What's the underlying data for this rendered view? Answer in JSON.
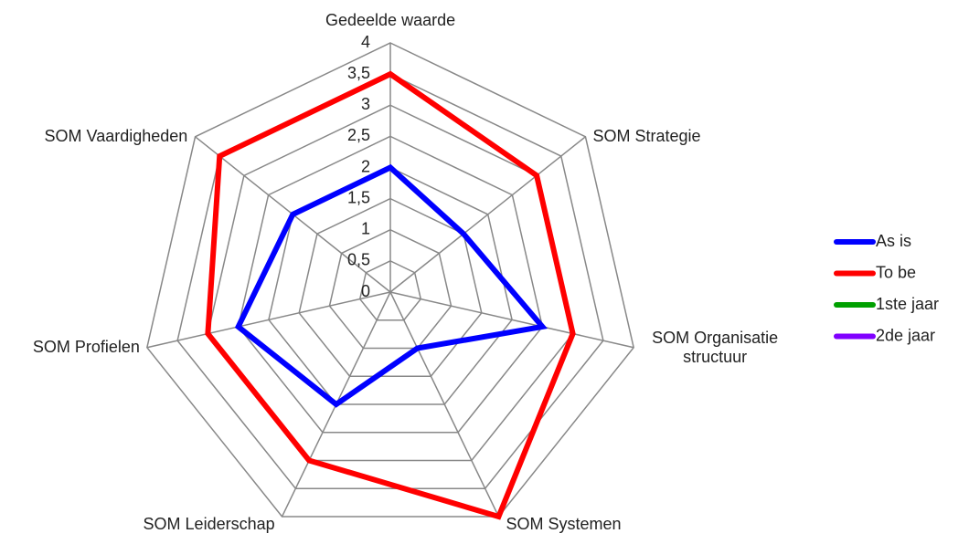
{
  "chart_data": {
    "type": "radar",
    "categories": [
      "Gedeelde waarde",
      "SOM Strategie",
      "SOM Organisatie structuur",
      "SOM Systemen",
      "SOM Leiderschap",
      "SOM Profielen",
      "SOM Vaardigheden"
    ],
    "series": [
      {
        "name": "As is",
        "color": "#0000ff",
        "values": [
          2,
          1.5,
          2.5,
          1,
          2,
          2.5,
          2
        ]
      },
      {
        "name": "To be",
        "color": "#ff0000",
        "values": [
          3.5,
          3,
          3,
          4,
          3,
          3,
          3.5
        ]
      },
      {
        "name": "1ste jaar",
        "color": "#00a000",
        "values": [
          null,
          null,
          null,
          null,
          null,
          null,
          null
        ]
      },
      {
        "name": "2de jaar",
        "color": "#8000ff",
        "values": [
          null,
          null,
          null,
          null,
          null,
          null,
          null
        ]
      }
    ],
    "ylim": [
      0,
      4
    ],
    "yticks": [
      0,
      {
        "value": 0.5,
        "label": "0,5"
      },
      1,
      {
        "value": 1.5,
        "label": "1,5"
      },
      2,
      {
        "value": 2.5,
        "label": "2,5"
      },
      3,
      {
        "value": 3.5,
        "label": "3,5"
      },
      4
    ],
    "grid": true,
    "legend": "right"
  }
}
